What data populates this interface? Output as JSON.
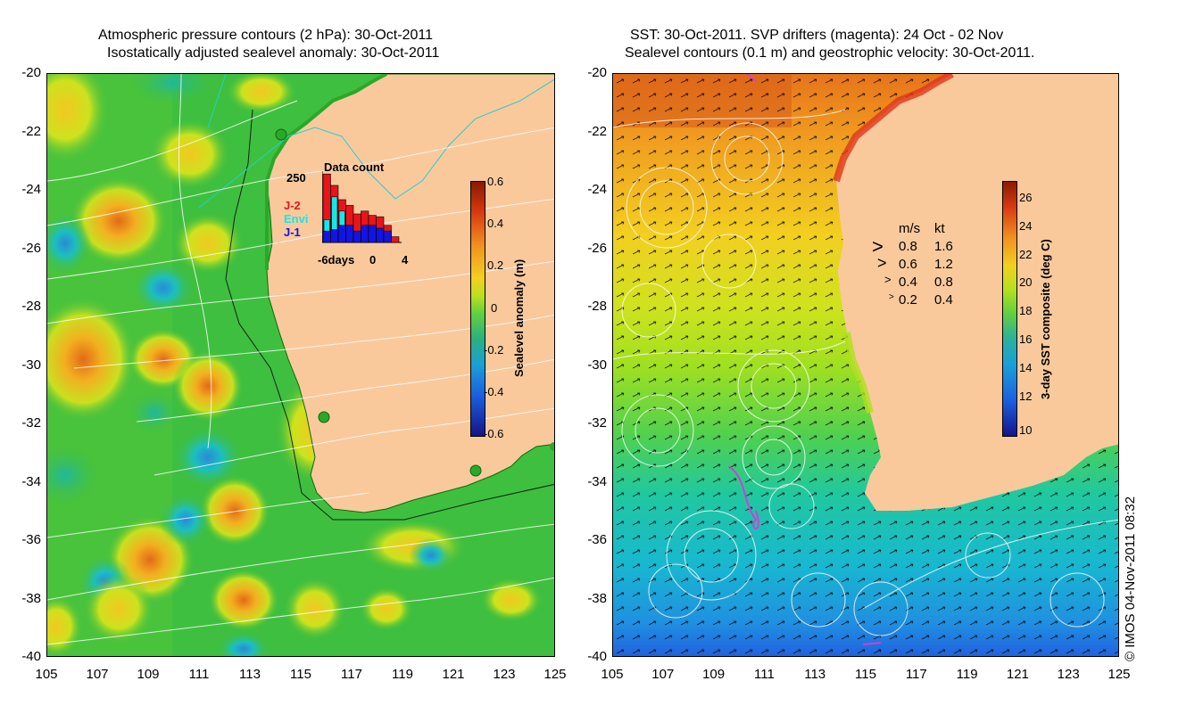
{
  "left_title": {
    "line1": "Atmospheric pressure contours (2 hPa): 30-Oct-2011",
    "line2": "Isostatically adjusted sealevel anomaly: 30-Oct-2011"
  },
  "right_title": {
    "line1": "SST: 30-Oct-2011. SVP drifters (magenta): 24 Oct - 02 Nov",
    "line2": "Sealevel contours (0.1 m) and geostrophic velocity: 30-Oct-2011."
  },
  "y_ticks": [
    "-20",
    "-22",
    "-24",
    "-26",
    "-28",
    "-30",
    "-32",
    "-34",
    "-36",
    "-38",
    "-40"
  ],
  "x_ticks": [
    "105",
    "107",
    "109",
    "111",
    "113",
    "115",
    "117",
    "119",
    "121",
    "123",
    "125"
  ],
  "left_colorbar": {
    "label": "Sealevel anomaly (m)",
    "ticks": [
      "0.6",
      "0.4",
      "0.2",
      "0",
      "-0.2",
      "-0.4",
      "-0.6"
    ]
  },
  "right_colorbar": {
    "label": "3-day SST composite (deg C)",
    "ticks": [
      "26",
      "24",
      "22",
      "20",
      "18",
      "16",
      "14",
      "12",
      "10"
    ]
  },
  "data_count": {
    "title": "Data count",
    "max_label": "250",
    "x_labels": [
      "-6days",
      "0",
      "4"
    ],
    "legend": [
      "J-2",
      "Envi",
      "J-1"
    ],
    "colors": {
      "J-2": "#e8141a",
      "Envi": "#18e6e6",
      "J-1": "#1414e0"
    },
    "j2": [
      240,
      200,
      150,
      130,
      100,
      110,
      95,
      90,
      60,
      20
    ],
    "envi": [
      80,
      160,
      110,
      0,
      0,
      0,
      0,
      0,
      0,
      0
    ],
    "j1": [
      40,
      45,
      60,
      60,
      40,
      60,
      60,
      50,
      40,
      0
    ]
  },
  "velocity_legend": {
    "header_ms": "m/s",
    "header_kt": "kt",
    "rows": [
      {
        "ms": "0.8",
        "kt": "1.6"
      },
      {
        "ms": "0.6",
        "kt": "1.2"
      },
      {
        "ms": "0.4",
        "kt": "0.8"
      },
      {
        "ms": "0.2",
        "kt": "0.4"
      }
    ]
  },
  "footer": "© IMOS 04-Nov-2011 08:32",
  "colors": {
    "land": "#f9c99c",
    "left_ocean": "#3fbf3f",
    "ocean_warm": "#f08a20",
    "ocean_cold": "#1a78d8"
  }
}
